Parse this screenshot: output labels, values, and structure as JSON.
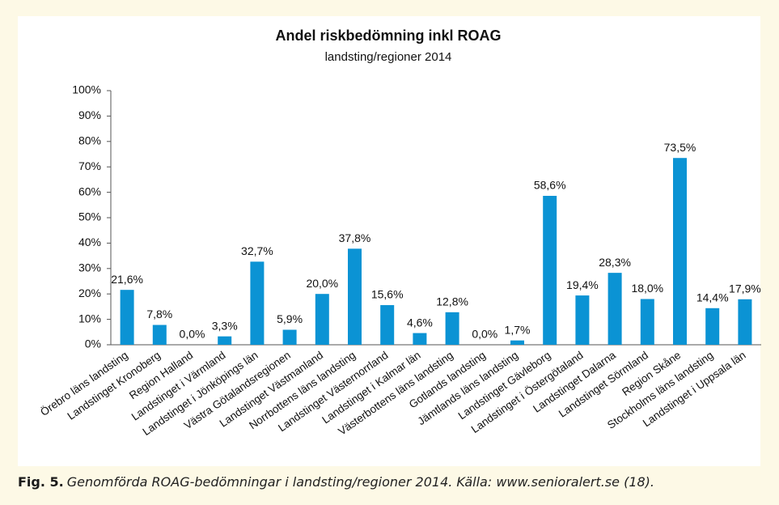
{
  "chart_data": {
    "type": "bar",
    "title": "Andel riskbedömning inkl ROAG",
    "subtitle": "landsting/regioner 2014",
    "categories": [
      "Örebro läns  landsting",
      "Landstinget Kronoberg",
      "Region Halland",
      "Landstinget i Värmland",
      "Landstinget i Jönköpings län",
      "Västra Götalandsregionen",
      "Landstinget Västmanland",
      "Norrbottens läns landsting",
      "Landstinget Västernorrland",
      "Landstinget i Kalmar län",
      "Västerbottens läns landsting",
      "Gotlands landsting",
      "Jämtlands läns landsting",
      "Landstinget Gävleborg",
      "Landstinget i Östergötaland",
      "Landstinget Dalarna",
      "Landstinget Sörmland",
      "Region Skåne",
      "Stockholms läns landsting",
      "Landstinget i Uppsala län"
    ],
    "values": [
      21.6,
      7.8,
      0,
      3.3,
      32.7,
      5.9,
      20,
      37.8,
      15.6,
      4.6,
      12.8,
      0,
      1.7,
      58.6,
      19.4,
      28.3,
      18,
      73.5,
      14.4,
      17.9
    ],
    "value_labels": [
      "21,6%",
      "7,8%",
      "0,0%",
      "3,3%",
      "32,7%",
      "5,9%",
      "20,0%",
      "37,8%",
      "15,6%",
      "4,6%",
      "12,8%",
      "0,0%",
      "1,7%",
      "58,6%",
      "19,4%",
      "28,3%",
      "18,0%",
      "73,5%",
      "14,4%",
      "17,9%"
    ],
    "color": "#0b93d4",
    "ylim": [
      0,
      100
    ],
    "yticks": [
      {
        "value": 0,
        "label": "0%"
      },
      {
        "value": 10,
        "label": "10%"
      },
      {
        "value": 20,
        "label": "20%"
      },
      {
        "value": 30,
        "label": "30%"
      },
      {
        "value": 40,
        "label": "40%"
      },
      {
        "value": 50,
        "label": "50%"
      },
      {
        "value": 60,
        "label": "60%"
      },
      {
        "value": 70,
        "label": "70%"
      },
      {
        "value": 80,
        "label": "80%"
      },
      {
        "value": 90,
        "label": "90%"
      },
      {
        "value": 100,
        "label": "100%"
      }
    ],
    "grid": false
  },
  "caption": {
    "label": "Fig. 5.",
    "text": "Genomförda ROAG-bedömningar i landsting/regioner 2014. Källa: www.senioralert.se (18)."
  }
}
